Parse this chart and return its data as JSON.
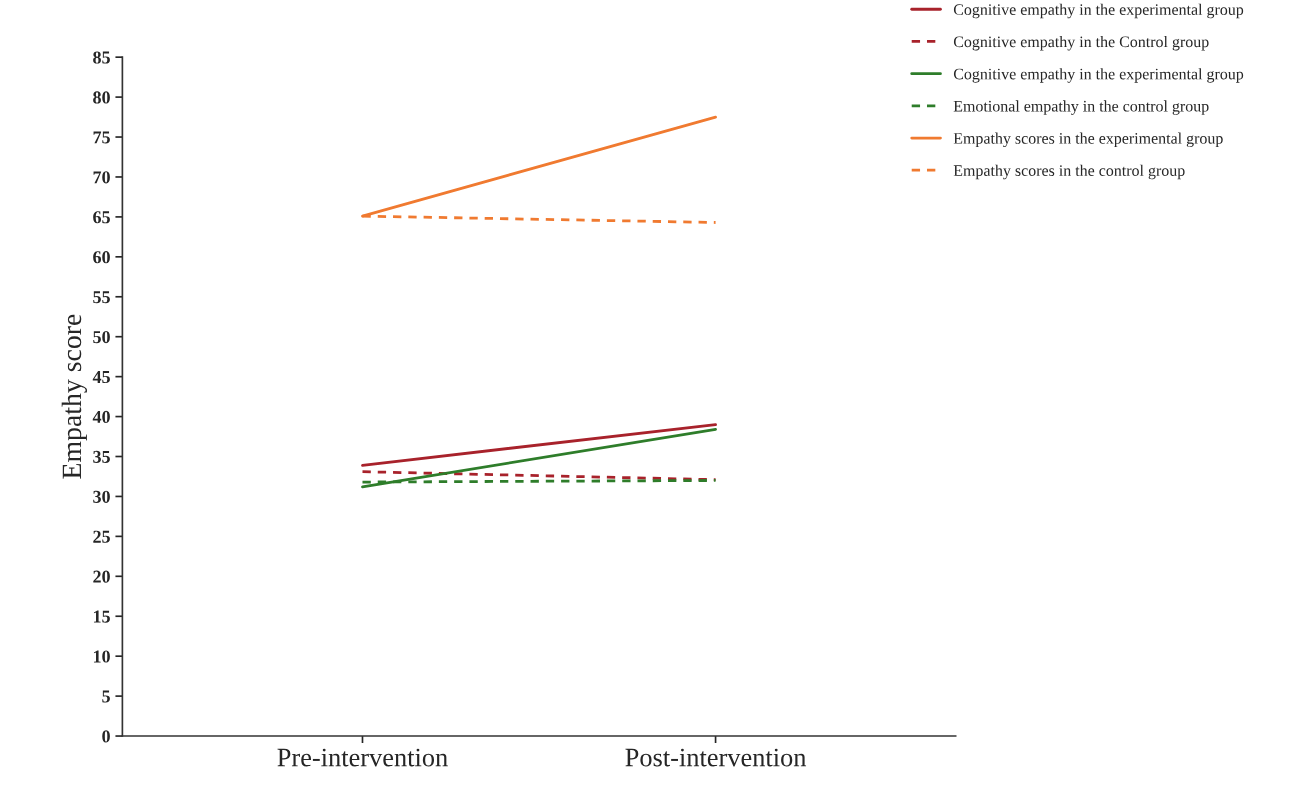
{
  "chart_data": {
    "type": "line",
    "ylabel": "Empathy score",
    "categories": [
      "Pre-intervention",
      "Post-intervention"
    ],
    "ylim": [
      0,
      85
    ],
    "yticks": [
      0,
      5,
      10,
      15,
      20,
      25,
      30,
      35,
      40,
      45,
      50,
      55,
      60,
      65,
      70,
      75,
      80,
      85
    ],
    "grid": false,
    "legend": "top right",
    "marker": "none",
    "series": [
      {
        "name": "Cognitive empathy in the experimental group",
        "color": "#a8222b",
        "line_style": "solid",
        "values": [
          33.9,
          39.0
        ]
      },
      {
        "name": "Cognitive empathy in the Control group",
        "color": "#a8222b",
        "line_style": "dashed",
        "values": [
          33.1,
          32.1
        ]
      },
      {
        "name": "Cognitive empathy in the experimental group",
        "color": "#2e7d2a",
        "line_style": "solid",
        "values": [
          31.2,
          38.4
        ]
      },
      {
        "name": "Emotional empathy in the control group",
        "color": "#2e7d2a",
        "line_style": "dashed",
        "values": [
          31.8,
          32.0
        ]
      },
      {
        "name": "Empathy scores in the experimental group",
        "color": "#f07a30",
        "line_style": "solid",
        "values": [
          65.1,
          77.5
        ]
      },
      {
        "name": "Empathy scores in the control group",
        "color": "#f07a30",
        "line_style": "dashed",
        "values": [
          65.1,
          64.3
        ]
      }
    ]
  }
}
